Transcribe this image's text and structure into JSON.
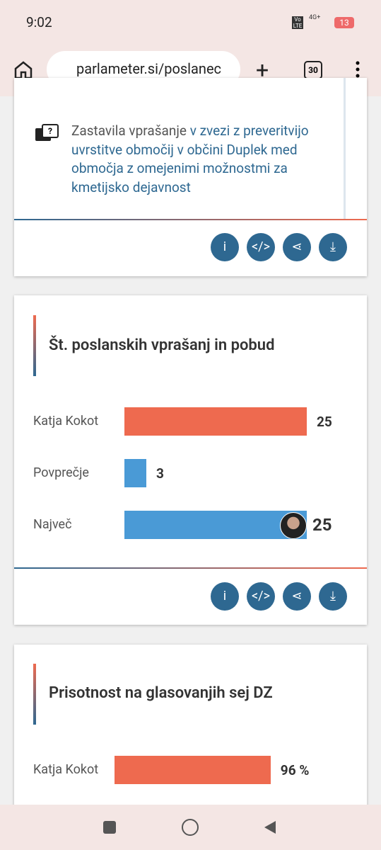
{
  "status_bar": {
    "time": "9:02",
    "volte": "Vo LTE",
    "network": "4G+",
    "battery": "13"
  },
  "browser": {
    "url": "parlameter.si/poslanec",
    "tabs": "30"
  },
  "cards": [
    {
      "text": "Zastavila vprašanje",
      "link": "v zvezi z preveritvijo uvrstitve območij v občini Duplek med območja z omejenimi možnostmi za kmetijsko dejavnost"
    },
    {
      "title": "Št. poslanskih vprašanj in pobud",
      "rows": [
        {
          "label": "Katja Kokot",
          "value": 25,
          "color": "#ee6a4f"
        },
        {
          "label": "Povprečje",
          "value": 3,
          "color": "#4a9ad6"
        },
        {
          "label": "Največ",
          "value": 25,
          "color": "#4a9ad6"
        }
      ]
    },
    {
      "title": "Prisotnost na glasovanjih sej DZ",
      "rows": [
        {
          "label": "Katja Kokot",
          "value": 96,
          "value_label": "96 %",
          "color": "#ee6a4f"
        }
      ]
    }
  ]
}
